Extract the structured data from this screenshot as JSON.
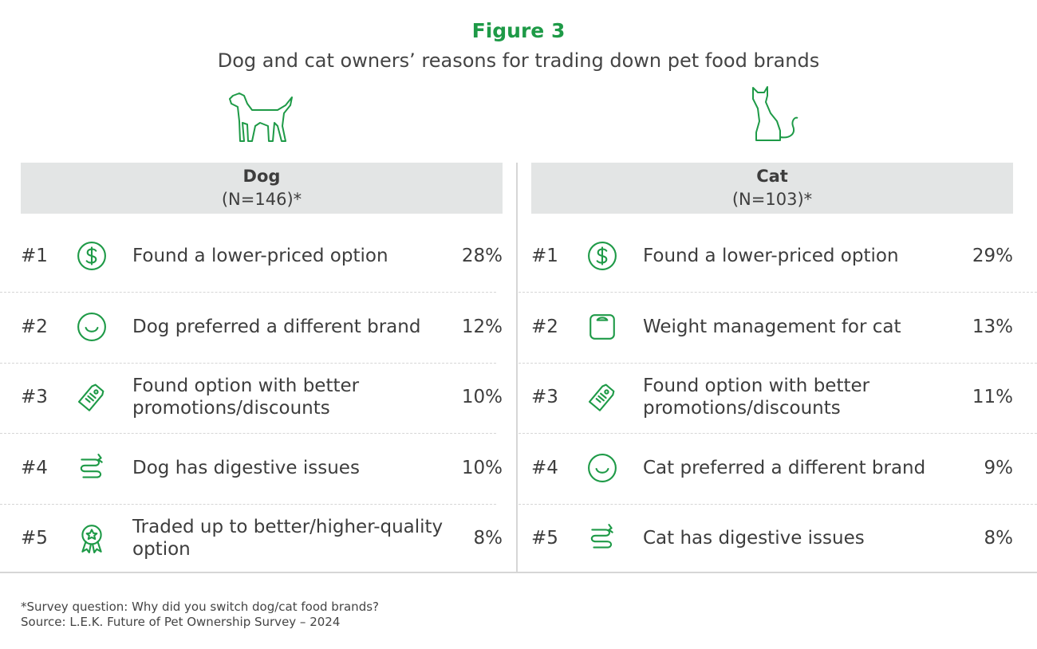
{
  "header": {
    "figure": "Figure 3",
    "title": "Dog and cat owners’ reasons for trading down pet food brands"
  },
  "panels": [
    {
      "title": "Dog",
      "subtitle": "(N=146)*",
      "rows": [
        {
          "rank": "#1",
          "reason": "Found a lower-priced option",
          "share": "28%"
        },
        {
          "rank": "#2",
          "reason": "Dog preferred a different brand",
          "share": "12%"
        },
        {
          "rank": "#3",
          "reason": "Found option with better promotions/discounts",
          "share": "10%"
        },
        {
          "rank": "#4",
          "reason": "Dog has digestive issues",
          "share": "10%"
        },
        {
          "rank": "#5",
          "reason": "Traded up to better/higher-quality option",
          "share": "8%"
        }
      ]
    },
    {
      "title": "Cat",
      "subtitle": "(N=103)*",
      "rows": [
        {
          "rank": "#1",
          "reason": "Found a lower-priced option",
          "share": "29%"
        },
        {
          "rank": "#2",
          "reason": "Weight management for cat",
          "share": "13%"
        },
        {
          "rank": "#3",
          "reason": "Found option with better promotions/discounts",
          "share": "11%"
        },
        {
          "rank": "#4",
          "reason": "Cat preferred a different brand",
          "share": "9%"
        },
        {
          "rank": "#5",
          "reason": "Cat has digestive issues",
          "share": "8%"
        }
      ]
    }
  ],
  "footnotes": [
    "*Survey question: Why did you switch dog/cat food brands?",
    "Source: L.E.K. Future of Pet Ownership Survey – 2024"
  ]
}
